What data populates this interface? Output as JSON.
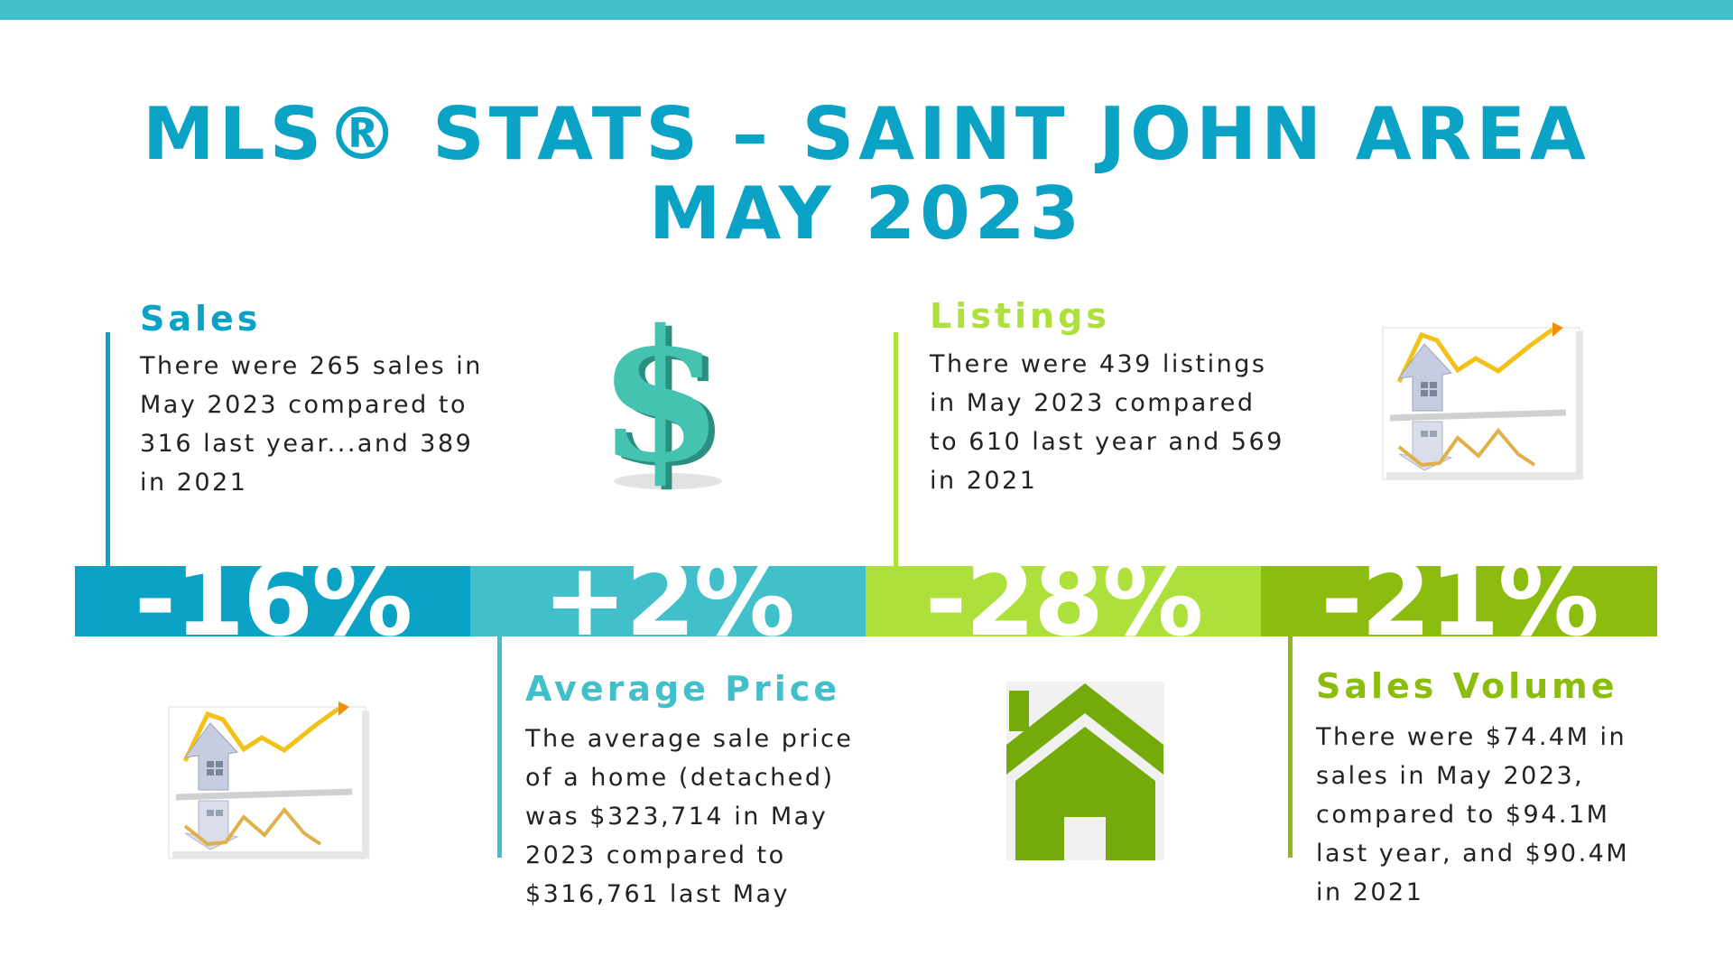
{
  "title": {
    "line1": "MLS® STATS – SAINT JOHN AREA",
    "line2": "MAY 2023"
  },
  "colors": {
    "top_bar": "#41bfcb",
    "blue": "#0aa3c5",
    "teal": "#41bfcb",
    "light_green": "#aee03c",
    "green": "#8cbd0e",
    "dollar_icon": "#3fbfae",
    "house_icon": "#74aa0a"
  },
  "sections": {
    "sales": {
      "title": "Sales",
      "body": "There were 265 sales in May 2023 compared to 316 last year...and 389 in 2021"
    },
    "listings": {
      "title": "Listings",
      "body": "There were 439 listings in May 2023 compared to 610 last year and 569 in 2021"
    },
    "average_price": {
      "title": "Average Price",
      "body": "The average sale price of a home (detached) was $323,714 in May 2023 compared to $316,761 last May"
    },
    "sales_volume": {
      "title": "Sales Volume",
      "body": "There were $74.4M in sales in May 2023, compared to $94.1M last year, and $90.4M in 2021"
    }
  },
  "percentages": {
    "sales": "-16%",
    "average_price": "+2%",
    "listings": "-28%",
    "sales_volume": "-21%"
  },
  "icons": {
    "dollar": "dollar-sign-icon",
    "house_chart": "house-price-chart-icon",
    "house": "house-icon"
  }
}
